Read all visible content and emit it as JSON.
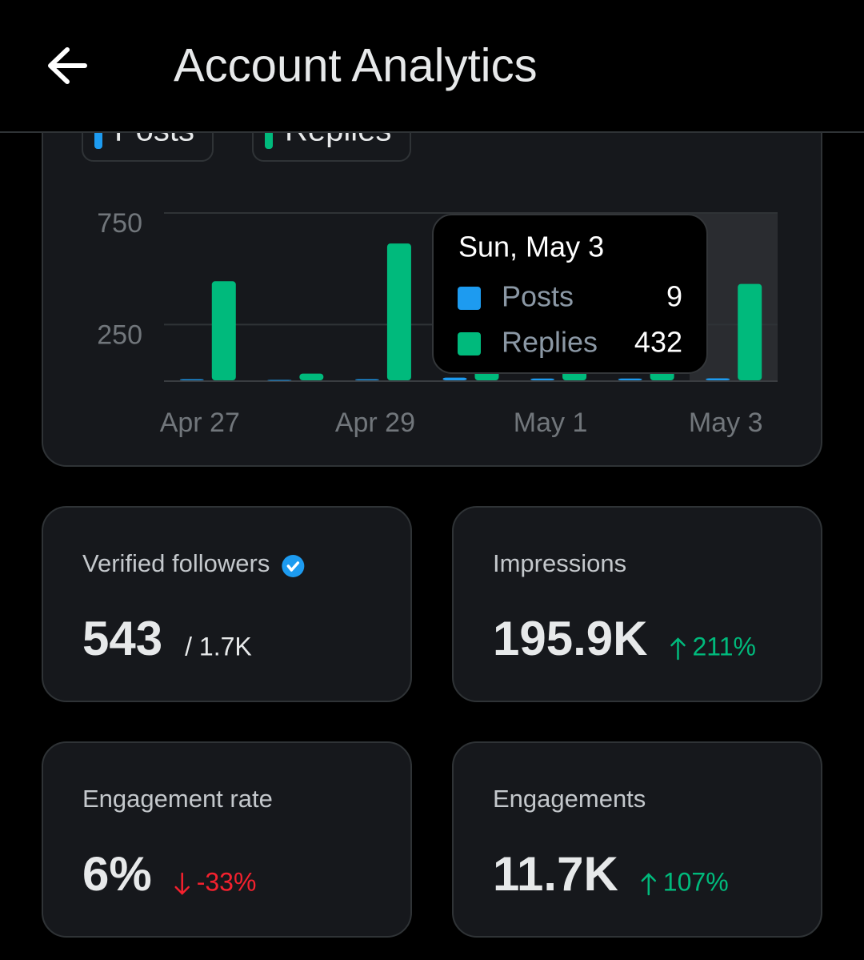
{
  "header": {
    "title": "Account Analytics"
  },
  "chart_data": {
    "type": "bar",
    "categories": [
      "Apr 27",
      null,
      "Apr 29",
      null,
      "May 1",
      null,
      "May 3"
    ],
    "series": [
      {
        "name": "Posts",
        "color": "#1d9bf0",
        "values": [
          5,
          2,
          5,
          12,
          8,
          8,
          9
        ]
      },
      {
        "name": "Replies",
        "color": "#00ba7c",
        "values": [
          444,
          30,
          613,
          60,
          40,
          40,
          432
        ]
      }
    ],
    "ylim": [
      0,
      750
    ],
    "yticks": [
      250,
      750
    ],
    "grid": true,
    "tooltip": {
      "title": "Sun, May 3"
    }
  },
  "cards": [
    {
      "label": "Verified followers",
      "verified": true,
      "value": "543",
      "total": "/ 1.7K"
    },
    {
      "label": "Impressions",
      "value": "195.9K",
      "change": "211%",
      "trend": "up"
    },
    {
      "label": "Engagement rate",
      "value": "6%",
      "change": "-33%",
      "trend": "down"
    },
    {
      "label": "Engagements",
      "value": "11.7K",
      "change": "107%",
      "trend": "up"
    }
  ]
}
